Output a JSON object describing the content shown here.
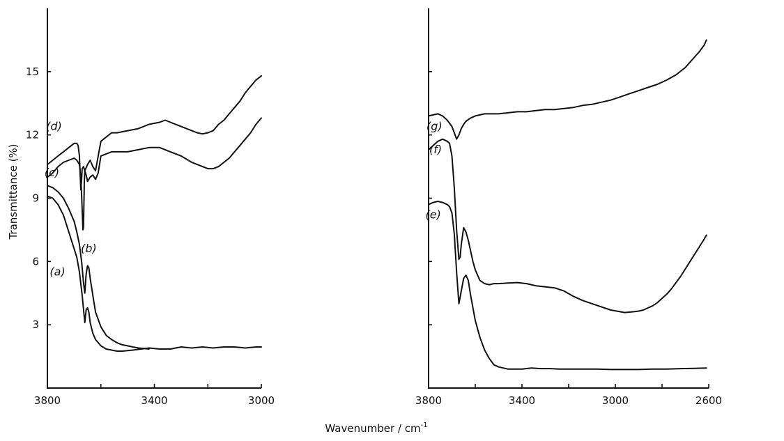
{
  "figure": {
    "ylabel": "Transmittance (%)",
    "xlabel": "Wavenumber / cm",
    "xlabel_exponent": "-1"
  },
  "chart_data": [
    {
      "type": "line",
      "panel": "left",
      "ylabel": "Transmittance (%)",
      "xlabel": "Wavenumber / cm-1",
      "xlim": [
        3800,
        3000
      ],
      "ylim": [
        0,
        18
      ],
      "xticks": [
        3800,
        3600,
        3400,
        3200,
        3000
      ],
      "xtick_labels": [
        "3800",
        "3400",
        "3000"
      ],
      "yticks": [
        3,
        6,
        9,
        12,
        15
      ],
      "ytick_labels": [
        "3",
        "6",
        "9",
        "12",
        "15"
      ],
      "grid": false,
      "series": [
        {
          "name": "(a)",
          "label_at": [
            3762,
            5.5
          ],
          "x": [
            3800,
            3780,
            3760,
            3740,
            3720,
            3700,
            3690,
            3680,
            3670,
            3660,
            3655,
            3650,
            3645,
            3640,
            3630,
            3620,
            3600,
            3580,
            3560,
            3540,
            3520,
            3480,
            3420,
            3380,
            3340,
            3300,
            3260,
            3220,
            3180,
            3140,
            3100,
            3060,
            3020,
            3000
          ],
          "y": [
            9.1,
            9.0,
            8.7,
            8.2,
            7.4,
            6.6,
            6.2,
            5.5,
            4.4,
            3.1,
            3.7,
            3.8,
            3.6,
            3.1,
            2.6,
            2.3,
            2.0,
            1.85,
            1.8,
            1.75,
            1.75,
            1.8,
            1.9,
            1.85,
            1.85,
            1.95,
            1.9,
            1.95,
            1.9,
            1.95,
            1.95,
            1.9,
            1.95,
            1.95
          ]
        },
        {
          "name": "(b)",
          "label_at": [
            3645,
            6.6
          ],
          "x": [
            3800,
            3780,
            3760,
            3740,
            3720,
            3700,
            3690,
            3680,
            3672,
            3665,
            3660,
            3655,
            3650,
            3645,
            3640,
            3630,
            3620,
            3600,
            3580,
            3560,
            3540,
            3520,
            3500,
            3480,
            3460,
            3440,
            3420
          ],
          "y": [
            9.6,
            9.5,
            9.3,
            9.0,
            8.5,
            7.9,
            7.4,
            6.8,
            6.0,
            5.0,
            4.5,
            5.4,
            5.8,
            5.7,
            5.2,
            4.4,
            3.6,
            2.9,
            2.5,
            2.3,
            2.15,
            2.05,
            2.0,
            1.95,
            1.9,
            1.88,
            1.85
          ]
        },
        {
          "name": "(c)",
          "label_at": [
            3783,
            10.2
          ],
          "x": [
            3800,
            3780,
            3760,
            3740,
            3720,
            3700,
            3690,
            3680,
            3675,
            3670,
            3667,
            3665,
            3662,
            3660,
            3655,
            3650,
            3640,
            3630,
            3620,
            3610,
            3600,
            3580,
            3560,
            3540,
            3500,
            3460,
            3420,
            3380,
            3360,
            3340,
            3300,
            3260,
            3240,
            3220,
            3200,
            3180,
            3160,
            3140,
            3120,
            3100,
            3080,
            3060,
            3040,
            3020,
            3000
          ],
          "y": [
            10.0,
            10.2,
            10.5,
            10.7,
            10.8,
            10.9,
            10.8,
            10.6,
            10.0,
            8.5,
            7.5,
            7.6,
            9.8,
            10.3,
            10.1,
            9.8,
            10.0,
            10.1,
            9.9,
            10.2,
            11.0,
            11.1,
            11.2,
            11.2,
            11.2,
            11.3,
            11.4,
            11.4,
            11.3,
            11.2,
            11.0,
            10.7,
            10.6,
            10.5,
            10.4,
            10.4,
            10.5,
            10.7,
            10.9,
            11.2,
            11.5,
            11.8,
            12.1,
            12.5,
            12.8
          ]
        },
        {
          "name": "(d)",
          "label_at": [
            3775,
            12.4
          ],
          "x": [
            3800,
            3780,
            3760,
            3740,
            3720,
            3700,
            3690,
            3685,
            3680,
            3677,
            3675,
            3672,
            3670,
            3665,
            3660,
            3650,
            3640,
            3630,
            3620,
            3610,
            3600,
            3580,
            3560,
            3540,
            3500,
            3460,
            3420,
            3380,
            3360,
            3340,
            3300,
            3260,
            3240,
            3220,
            3200,
            3180,
            3160,
            3140,
            3120,
            3100,
            3080,
            3060,
            3040,
            3020,
            3000
          ],
          "y": [
            10.6,
            10.8,
            11.0,
            11.2,
            11.4,
            11.6,
            11.6,
            11.5,
            11.0,
            10.0,
            9.4,
            9.9,
            10.4,
            10.5,
            10.3,
            10.6,
            10.8,
            10.5,
            10.3,
            11.0,
            11.7,
            11.9,
            12.1,
            12.1,
            12.2,
            12.3,
            12.5,
            12.6,
            12.7,
            12.6,
            12.4,
            12.2,
            12.1,
            12.05,
            12.1,
            12.2,
            12.5,
            12.7,
            13.0,
            13.3,
            13.6,
            14.0,
            14.3,
            14.6,
            14.8
          ]
        }
      ]
    },
    {
      "type": "line",
      "panel": "right",
      "xlim": [
        3800,
        2600
      ],
      "ylim": [
        0,
        18
      ],
      "xticks": [
        3800,
        3600,
        3400,
        3200,
        3000,
        2800,
        2600
      ],
      "xtick_labels": [
        "3800",
        "3400",
        "3000",
        "2600"
      ],
      "yticks": [
        3,
        6,
        9,
        12,
        15
      ],
      "grid": false,
      "series": [
        {
          "name": "(e)",
          "label_at": [
            3780,
            8.2
          ],
          "x": [
            3800,
            3780,
            3760,
            3740,
            3720,
            3710,
            3700,
            3690,
            3680,
            3670,
            3660,
            3650,
            3640,
            3630,
            3620,
            3600,
            3580,
            3560,
            3540,
            3520,
            3500,
            3480,
            3460,
            3440,
            3420,
            3400,
            3360,
            3320,
            3280,
            3240,
            3200,
            3140,
            3080,
            3020,
            2960,
            2900,
            2840,
            2780,
            2720,
            2660,
            2610
          ],
          "y": [
            8.7,
            8.8,
            8.85,
            8.8,
            8.7,
            8.6,
            8.3,
            7.3,
            5.5,
            4.0,
            4.6,
            5.2,
            5.35,
            5.1,
            4.4,
            3.2,
            2.4,
            1.8,
            1.4,
            1.1,
            1.0,
            0.95,
            0.9,
            0.9,
            0.9,
            0.9,
            0.95,
            0.92,
            0.92,
            0.9,
            0.9,
            0.9,
            0.9,
            0.88,
            0.88,
            0.88,
            0.9,
            0.9,
            0.92,
            0.93,
            0.95
          ]
        },
        {
          "name": "(f)",
          "label_at": [
            3770,
            11.3
          ],
          "x": [
            3800,
            3780,
            3760,
            3740,
            3720,
            3710,
            3700,
            3690,
            3680,
            3670,
            3665,
            3660,
            3655,
            3650,
            3640,
            3630,
            3620,
            3610,
            3600,
            3580,
            3560,
            3540,
            3520,
            3500,
            3460,
            3420,
            3380,
            3340,
            3300,
            3260,
            3220,
            3180,
            3140,
            3100,
            3060,
            3020,
            2980,
            2960,
            2940,
            2920,
            2900,
            2880,
            2860,
            2840,
            2820,
            2800,
            2780,
            2760,
            2740,
            2720,
            2700,
            2680,
            2660,
            2640,
            2620,
            2610
          ],
          "y": [
            11.3,
            11.5,
            11.7,
            11.8,
            11.7,
            11.6,
            11.0,
            9.5,
            7.5,
            6.1,
            6.2,
            6.8,
            7.2,
            7.6,
            7.4,
            7.0,
            6.5,
            6.0,
            5.6,
            5.1,
            4.95,
            4.9,
            4.95,
            4.95,
            4.98,
            5.0,
            4.95,
            4.85,
            4.8,
            4.75,
            4.6,
            4.35,
            4.15,
            4.0,
            3.85,
            3.7,
            3.62,
            3.58,
            3.6,
            3.62,
            3.65,
            3.7,
            3.8,
            3.9,
            4.05,
            4.25,
            4.45,
            4.7,
            5.0,
            5.3,
            5.65,
            6.0,
            6.35,
            6.7,
            7.05,
            7.25
          ]
        },
        {
          "name": "(g)",
          "label_at": [
            3775,
            12.4
          ],
          "x": [
            3800,
            3780,
            3760,
            3740,
            3720,
            3700,
            3690,
            3680,
            3670,
            3660,
            3650,
            3640,
            3620,
            3600,
            3580,
            3560,
            3540,
            3500,
            3460,
            3420,
            3380,
            3340,
            3300,
            3260,
            3220,
            3180,
            3140,
            3100,
            3060,
            3020,
            2980,
            2940,
            2900,
            2860,
            2820,
            2780,
            2740,
            2700,
            2680,
            2660,
            2640,
            2620,
            2610
          ],
          "y": [
            12.9,
            12.95,
            13.0,
            12.9,
            12.7,
            12.4,
            12.1,
            11.8,
            12.0,
            12.3,
            12.5,
            12.65,
            12.8,
            12.9,
            12.95,
            13.0,
            13.0,
            13.0,
            13.05,
            13.1,
            13.1,
            13.15,
            13.2,
            13.2,
            13.25,
            13.3,
            13.4,
            13.45,
            13.55,
            13.65,
            13.8,
            13.95,
            14.1,
            14.25,
            14.4,
            14.6,
            14.85,
            15.2,
            15.45,
            15.7,
            15.95,
            16.25,
            16.5
          ]
        }
      ]
    }
  ]
}
